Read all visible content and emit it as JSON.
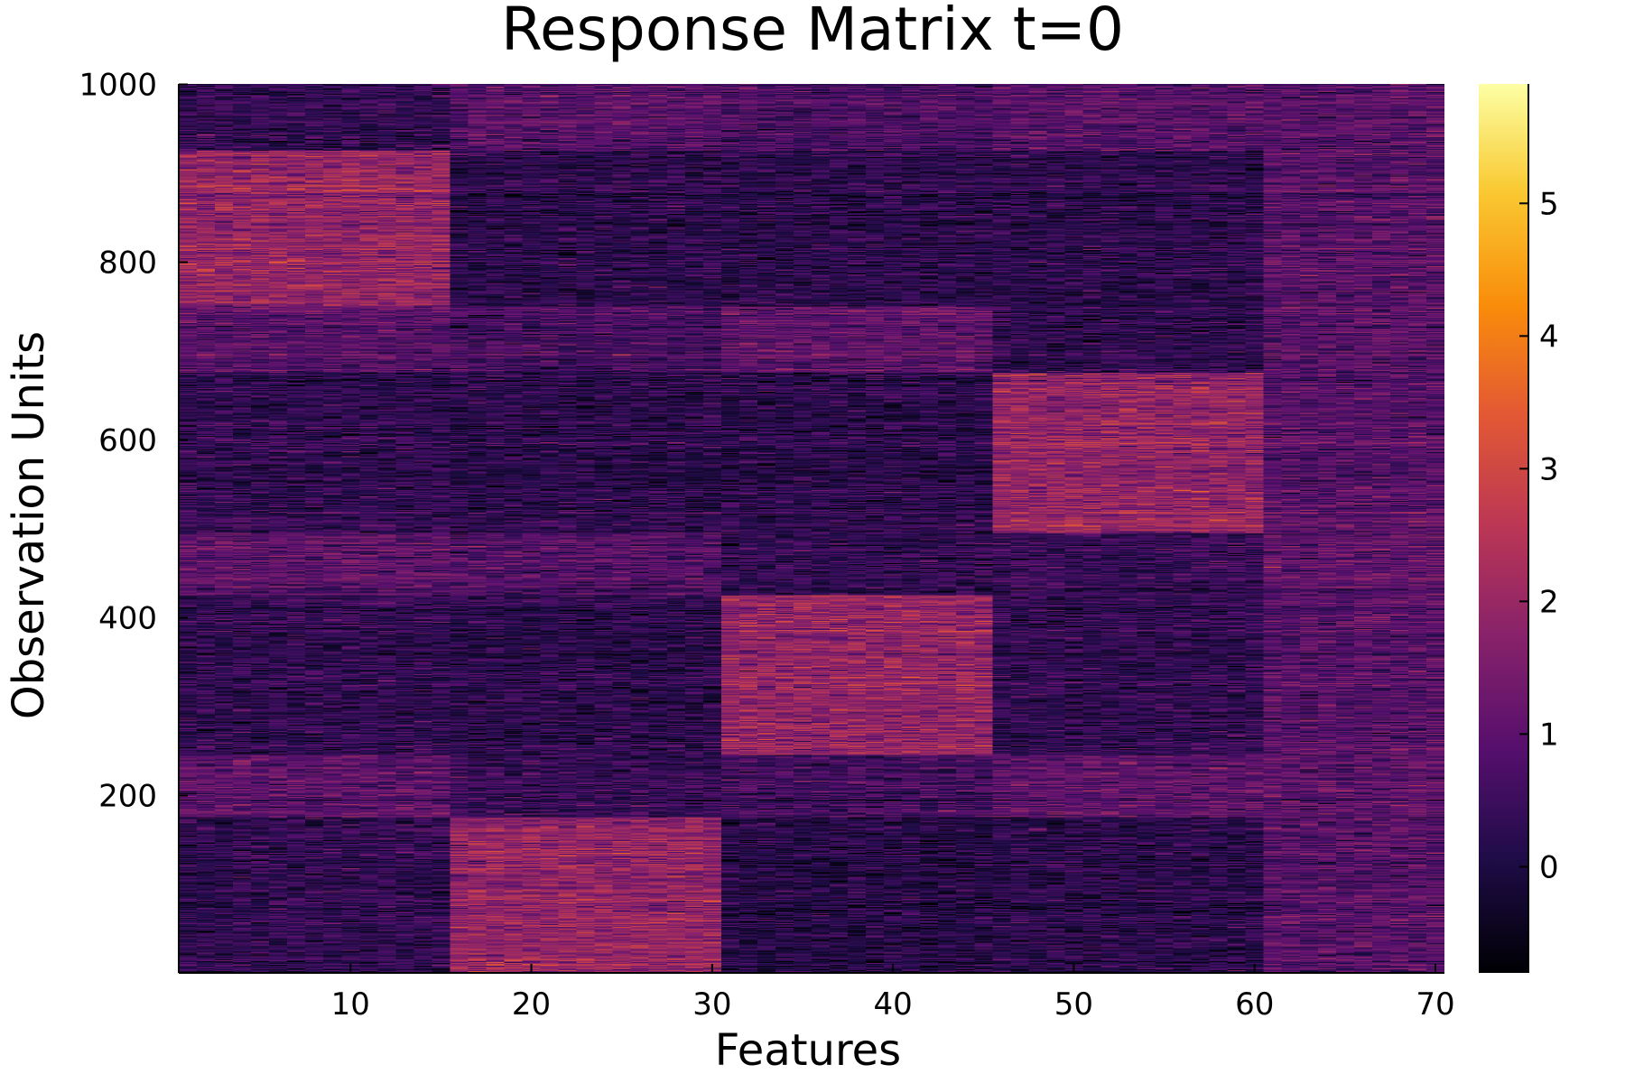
{
  "chart_data": {
    "type": "heatmap",
    "title": "Response Matrix t=0",
    "xlabel": "Features",
    "ylabel": "Observation Units",
    "xlim": [
      0.5,
      70.5
    ],
    "ylim": [
      0.5,
      1000.5
    ],
    "x_ticks": [
      {
        "value": 10,
        "label": "10"
      },
      {
        "value": 20,
        "label": "20"
      },
      {
        "value": 30,
        "label": "30"
      },
      {
        "value": 40,
        "label": "40"
      },
      {
        "value": 50,
        "label": "50"
      },
      {
        "value": 60,
        "label": "60"
      },
      {
        "value": 70,
        "label": "70"
      }
    ],
    "y_ticks": [
      {
        "value": 200,
        "label": "200"
      },
      {
        "value": 400,
        "label": "400"
      },
      {
        "value": 600,
        "label": "600"
      },
      {
        "value": 800,
        "label": "800"
      },
      {
        "value": 1000,
        "label": "1000"
      }
    ],
    "colorbar": {
      "colormap": "inferno",
      "range": [
        -0.8,
        5.9
      ],
      "ticks": [
        {
          "value": 0,
          "label": "0"
        },
        {
          "value": 1,
          "label": "1"
        },
        {
          "value": 2,
          "label": "2"
        },
        {
          "value": 3,
          "label": "3"
        },
        {
          "value": 4,
          "label": "4"
        },
        {
          "value": 5,
          "label": "5"
        }
      ]
    },
    "grid": false,
    "n_features": 70,
    "n_units": 1000,
    "base_mean": 0.0,
    "noise_sd": 0.55,
    "blocks": [
      {
        "x_range": [
          1,
          15
        ],
        "y_range": [
          1,
          175
        ],
        "mean": 0.3
      },
      {
        "x_range": [
          16,
          30
        ],
        "y_range": [
          1,
          175
        ],
        "mean": 1.9
      },
      {
        "x_range": [
          31,
          45
        ],
        "y_range": [
          1,
          175
        ],
        "mean": 0.1
      },
      {
        "x_range": [
          46,
          60
        ],
        "y_range": [
          1,
          175
        ],
        "mean": 0.2
      },
      {
        "x_range": [
          61,
          70
        ],
        "y_range": [
          1,
          175
        ],
        "mean": 0.9
      },
      {
        "x_range": [
          1,
          15
        ],
        "y_range": [
          176,
          245
        ],
        "mean": 1.0
      },
      {
        "x_range": [
          16,
          30
        ],
        "y_range": [
          176,
          245
        ],
        "mean": 0.4
      },
      {
        "x_range": [
          31,
          45
        ],
        "y_range": [
          176,
          245
        ],
        "mean": 0.6
      },
      {
        "x_range": [
          46,
          60
        ],
        "y_range": [
          176,
          245
        ],
        "mean": 1.0
      },
      {
        "x_range": [
          61,
          70
        ],
        "y_range": [
          176,
          245
        ],
        "mean": 1.0
      },
      {
        "x_range": [
          1,
          15
        ],
        "y_range": [
          246,
          425
        ],
        "mean": 0.3
      },
      {
        "x_range": [
          16,
          30
        ],
        "y_range": [
          246,
          425
        ],
        "mean": 0.2
      },
      {
        "x_range": [
          31,
          45
        ],
        "y_range": [
          246,
          425
        ],
        "mean": 1.9
      },
      {
        "x_range": [
          46,
          60
        ],
        "y_range": [
          246,
          425
        ],
        "mean": 0.3
      },
      {
        "x_range": [
          61,
          70
        ],
        "y_range": [
          246,
          425
        ],
        "mean": 0.9
      },
      {
        "x_range": [
          1,
          15
        ],
        "y_range": [
          426,
          495
        ],
        "mean": 1.0
      },
      {
        "x_range": [
          16,
          30
        ],
        "y_range": [
          426,
          495
        ],
        "mean": 0.8
      },
      {
        "x_range": [
          31,
          45
        ],
        "y_range": [
          426,
          495
        ],
        "mean": 0.3
      },
      {
        "x_range": [
          46,
          60
        ],
        "y_range": [
          426,
          495
        ],
        "mean": 0.4
      },
      {
        "x_range": [
          61,
          70
        ],
        "y_range": [
          426,
          495
        ],
        "mean": 1.0
      },
      {
        "x_range": [
          1,
          15
        ],
        "y_range": [
          496,
          675
        ],
        "mean": 0.3
      },
      {
        "x_range": [
          16,
          30
        ],
        "y_range": [
          496,
          675
        ],
        "mean": 0.2
      },
      {
        "x_range": [
          31,
          45
        ],
        "y_range": [
          496,
          675
        ],
        "mean": 0.2
      },
      {
        "x_range": [
          46,
          60
        ],
        "y_range": [
          496,
          675
        ],
        "mean": 1.9
      },
      {
        "x_range": [
          61,
          70
        ],
        "y_range": [
          496,
          675
        ],
        "mean": 0.9
      },
      {
        "x_range": [
          1,
          15
        ],
        "y_range": [
          676,
          750
        ],
        "mean": 0.9
      },
      {
        "x_range": [
          16,
          30
        ],
        "y_range": [
          676,
          750
        ],
        "mean": 0.6
      },
      {
        "x_range": [
          31,
          45
        ],
        "y_range": [
          676,
          750
        ],
        "mean": 1.0
      },
      {
        "x_range": [
          46,
          60
        ],
        "y_range": [
          676,
          750
        ],
        "mean": 0.2
      },
      {
        "x_range": [
          61,
          70
        ],
        "y_range": [
          676,
          750
        ],
        "mean": 0.9
      },
      {
        "x_range": [
          1,
          15
        ],
        "y_range": [
          751,
          925
        ],
        "mean": 1.9
      },
      {
        "x_range": [
          16,
          30
        ],
        "y_range": [
          751,
          925
        ],
        "mean": 0.2
      },
      {
        "x_range": [
          31,
          45
        ],
        "y_range": [
          751,
          925
        ],
        "mean": 0.2
      },
      {
        "x_range": [
          46,
          60
        ],
        "y_range": [
          751,
          925
        ],
        "mean": 0.2
      },
      {
        "x_range": [
          61,
          70
        ],
        "y_range": [
          751,
          925
        ],
        "mean": 0.9
      },
      {
        "x_range": [
          1,
          15
        ],
        "y_range": [
          926,
          1000
        ],
        "mean": 0.3
      },
      {
        "x_range": [
          16,
          30
        ],
        "y_range": [
          926,
          1000
        ],
        "mean": 0.9
      },
      {
        "x_range": [
          31,
          45
        ],
        "y_range": [
          926,
          1000
        ],
        "mean": 0.7
      },
      {
        "x_range": [
          46,
          60
        ],
        "y_range": [
          926,
          1000
        ],
        "mean": 0.9
      },
      {
        "x_range": [
          61,
          70
        ],
        "y_range": [
          926,
          1000
        ],
        "mean": 0.9
      }
    ]
  }
}
